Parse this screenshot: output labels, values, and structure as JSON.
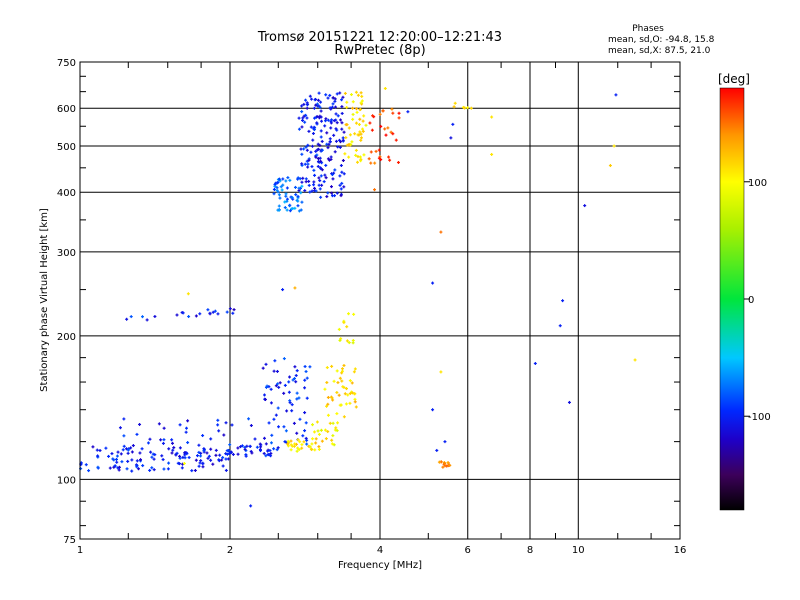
{
  "chart_data": {
    "type": "scatter",
    "title": "Tromsø 20151221 12:20:00–12:21:43",
    "subtitle": "RwPretec (8p)",
    "xlabel": "Frequency [MHz]",
    "ylabel": "Stationary phase Virtual Height [km]",
    "x_scale": "log2",
    "y_scale": "log",
    "xlim": [
      1,
      16
    ],
    "ylim": [
      75,
      750
    ],
    "x_ticks": [
      1,
      2,
      4,
      6,
      8,
      10,
      16
    ],
    "x_tick_labels": [
      "1",
      "2",
      "4",
      "6",
      "8",
      "10",
      "16"
    ],
    "y_ticks": [
      75,
      100,
      200,
      300,
      400,
      500,
      600,
      750
    ],
    "y_tick_labels": [
      "75",
      "100",
      "200",
      "300",
      "400",
      "500",
      "600",
      "750"
    ],
    "grid": true,
    "stats": {
      "heading": "Phases",
      "line_o": "mean, sd,O: -94.8, 15.8",
      "line_x": "mean, sd,X:  87.5, 21.0"
    },
    "colorbar": {
      "label": "[deg]",
      "min": -180,
      "max": 180,
      "ticks": [
        100,
        0,
        -100
      ],
      "tick_labels": [
        "100",
        "0",
        "-100"
      ]
    },
    "clusters": [
      {
        "fmin": 1.0,
        "fmax": 2.0,
        "hmin": 104,
        "hmax": 118,
        "phase": -102,
        "n": 120
      },
      {
        "fmin": 1.2,
        "fmax": 2.3,
        "hmin": 110,
        "hmax": 135,
        "phase": -100,
        "n": 45
      },
      {
        "fmin": 2.0,
        "fmax": 2.5,
        "hmin": 112,
        "hmax": 118,
        "phase": -102,
        "n": 30
      },
      {
        "fmin": 2.3,
        "fmax": 2.9,
        "hmin": 118,
        "hmax": 180,
        "phase": -98,
        "n": 70
      },
      {
        "fmin": 2.6,
        "fmax": 3.1,
        "hmin": 114,
        "hmax": 122,
        "phase": 110,
        "n": 30
      },
      {
        "fmin": 2.9,
        "fmax": 3.3,
        "hmin": 118,
        "hmax": 132,
        "phase": 100,
        "n": 20
      },
      {
        "fmin": 3.1,
        "fmax": 3.6,
        "hmin": 135,
        "hmax": 175,
        "phase": 115,
        "n": 45
      },
      {
        "fmin": 3.3,
        "fmax": 3.6,
        "hmin": 175,
        "hmax": 230,
        "phase": 95,
        "n": 12
      },
      {
        "fmin": 1.2,
        "fmax": 1.45,
        "hmin": 214,
        "hmax": 220,
        "phase": -95,
        "n": 5
      },
      {
        "fmin": 1.55,
        "fmax": 1.75,
        "hmin": 218,
        "hmax": 224,
        "phase": -100,
        "n": 6
      },
      {
        "fmin": 1.8,
        "fmax": 2.1,
        "hmin": 222,
        "hmax": 230,
        "phase": -105,
        "n": 10
      },
      {
        "fmin": 2.45,
        "fmax": 2.8,
        "hmin": 365,
        "hmax": 430,
        "phase": -75,
        "n": 60
      },
      {
        "fmin": 2.75,
        "fmax": 3.05,
        "hmin": 400,
        "hmax": 640,
        "phase": -100,
        "n": 90
      },
      {
        "fmin": 3.0,
        "fmax": 3.4,
        "hmin": 390,
        "hmax": 650,
        "phase": -105,
        "n": 110
      },
      {
        "fmin": 3.4,
        "fmax": 3.75,
        "hmin": 460,
        "hmax": 650,
        "phase": 110,
        "n": 55
      },
      {
        "fmin": 3.8,
        "fmax": 4.4,
        "hmin": 460,
        "hmax": 600,
        "phase": 160,
        "n": 30
      },
      {
        "fmin": 5.25,
        "fmax": 5.55,
        "hmin": 106,
        "hmax": 109,
        "phase": 150,
        "n": 14
      },
      {
        "fmin": 5.6,
        "fmax": 6.0,
        "hmin": 600,
        "hmax": 615,
        "phase": 115,
        "n": 6
      }
    ],
    "points": [
      {
        "f": 2.2,
        "h": 88,
        "phase": -100
      },
      {
        "f": 5.3,
        "h": 330,
        "phase": 150
      },
      {
        "f": 5.1,
        "h": 258,
        "phase": -100
      },
      {
        "f": 10.3,
        "h": 375,
        "phase": -110
      },
      {
        "f": 11.6,
        "h": 455,
        "phase": 120
      },
      {
        "f": 11.8,
        "h": 500,
        "phase": 110
      },
      {
        "f": 11.9,
        "h": 640,
        "phase": -100
      },
      {
        "f": 9.3,
        "h": 237,
        "phase": -100
      },
      {
        "f": 9.2,
        "h": 210,
        "phase": -100
      },
      {
        "f": 8.2,
        "h": 175,
        "phase": -100
      },
      {
        "f": 9.6,
        "h": 145,
        "phase": -110
      },
      {
        "f": 13.0,
        "h": 178,
        "phase": 110
      },
      {
        "f": 6.7,
        "h": 575,
        "phase": 110
      },
      {
        "f": 6.7,
        "h": 480,
        "phase": 110
      },
      {
        "f": 5.6,
        "h": 555,
        "phase": -100
      },
      {
        "f": 5.55,
        "h": 520,
        "phase": -110
      },
      {
        "f": 6.1,
        "h": 600,
        "phase": 115
      },
      {
        "f": 5.2,
        "h": 115,
        "phase": -100
      },
      {
        "f": 5.4,
        "h": 120,
        "phase": -100
      },
      {
        "f": 5.1,
        "h": 140,
        "phase": -100
      },
      {
        "f": 5.3,
        "h": 168,
        "phase": 110
      },
      {
        "f": 4.1,
        "h": 660,
        "phase": 110
      },
      {
        "f": 4.55,
        "h": 590,
        "phase": -100
      },
      {
        "f": 2.55,
        "h": 250,
        "phase": -100
      },
      {
        "f": 2.7,
        "h": 252,
        "phase": 130
      },
      {
        "f": 1.65,
        "h": 245,
        "phase": 110
      },
      {
        "f": 1.62,
        "h": 108,
        "phase": 100
      },
      {
        "f": 3.9,
        "h": 405,
        "phase": 150
      }
    ]
  }
}
